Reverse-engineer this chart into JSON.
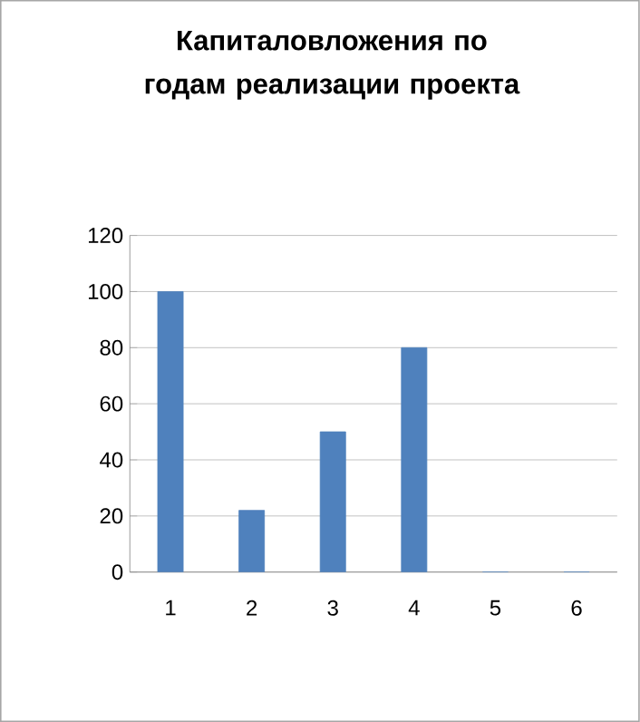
{
  "chart_data": {
    "type": "bar",
    "title": "Капиталовложения по годам реализации проекта",
    "categories": [
      "1",
      "2",
      "3",
      "4",
      "5",
      "6"
    ],
    "values": [
      100,
      22,
      50,
      80,
      0,
      0
    ],
    "color": "#4f81bd",
    "ylim": [
      0,
      120
    ],
    "yticks": [
      0,
      20,
      40,
      60,
      80,
      100,
      120
    ],
    "grid": "y"
  }
}
